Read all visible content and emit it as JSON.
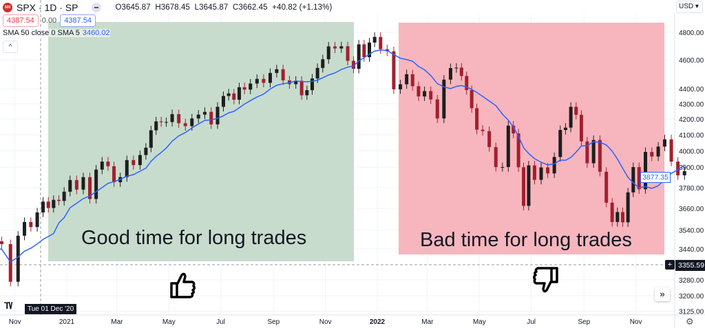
{
  "header": {
    "symbol": "SPX · 1D · SP",
    "logo_text": "500",
    "ohlc": "O3645.87  H3678.45  L3645.87  C3662.45  +40.82 (+1.13%)",
    "sell_price": "4387.54",
    "spread": "0.00",
    "buy_price": "4387.54",
    "indicator_label": "SMA 50 close 0 SMA 5",
    "indicator_value": "3460.02",
    "collapse_icon": "^",
    "currency": "USD ▾"
  },
  "annotations": {
    "good_label": "Good time for long trades",
    "bad_label": "Bad time for long trades",
    "good_color": "#c8dccd",
    "bad_color": "#f7b6be",
    "good_icon": "thumbs-up-icon",
    "bad_icon": "thumbs-down-icon"
  },
  "price_tags": {
    "last": "3877.35",
    "crosshair": "3355.59"
  },
  "crosshair_date": "Tue 01 Dec '20",
  "controls": {
    "scroll_right": "»",
    "settings": "⚙",
    "logo": "TV"
  },
  "chart_data": {
    "type": "candlestick",
    "scale": "log",
    "ylim": [
      3110,
      4900
    ],
    "y_ticks": [
      "4800.00",
      "4600.00",
      "4400.00",
      "4300.00",
      "4200.00",
      "4100.00",
      "4000.00",
      "3900.00",
      "3780.00",
      "3660.00",
      "3540.00",
      "3440.00",
      "3280.00",
      "3200.00",
      "3125.00"
    ],
    "x_ticks": [
      "Nov",
      "2021",
      "Mar",
      "May",
      "Jul",
      "Sep",
      "Nov",
      "2022",
      "Mar",
      "May",
      "Jul",
      "Sep",
      "Nov"
    ],
    "series": [
      {
        "name": "SPX",
        "weekly_closes_by_month": {
          "2020-10": [
            3480,
            3465,
            3270
          ],
          "2020-11": [
            3510,
            3585,
            3557,
            3638
          ],
          "2020-12": [
            3699,
            3663,
            3709,
            3703,
            3756
          ],
          "2021-01": [
            3824,
            3768,
            3841,
            3714
          ],
          "2021-02": [
            3886,
            3934,
            3906,
            3811
          ],
          "2021-03": [
            3841,
            3943,
            3913,
            3974
          ],
          "2021-04": [
            4019,
            4128,
            4185,
            4180,
            4181
          ],
          "2021-05": [
            4232,
            4173,
            4155,
            4204
          ],
          "2021-06": [
            4229,
            4247,
            4166,
            4280
          ],
          "2021-07": [
            4352,
            4369,
            4327,
            4411,
            4395
          ],
          "2021-08": [
            4436,
            4468,
            4441,
            4509
          ],
          "2021-09": [
            4535,
            4458,
            4432,
            4455
          ],
          "2021-10": [
            4357,
            4391,
            4471,
            4544,
            4605
          ],
          "2021-11": [
            4697,
            4682,
            4698,
            4594
          ],
          "2021-12": [
            4538,
            4712,
            4620,
            4725,
            4766
          ],
          "2022-01": [
            4677,
            4662,
            4397,
            4431
          ],
          "2022-02": [
            4500,
            4418,
            4349,
            4385
          ],
          "2022-03": [
            4329,
            4204,
            4463,
            4543
          ],
          "2022-04": [
            4546,
            4488,
            4392,
            4271,
            4132
          ],
          "2022-05": [
            4123,
            4023,
            3901,
            3901
          ],
          "2022-06": [
            4158,
            4108,
            3900,
            3675,
            3911
          ],
          "2022-07": [
            3825,
            3899,
            3863,
            3962
          ],
          "2022-08": [
            4130,
            4145,
            4280,
            4228,
            4058
          ],
          "2022-09": [
            3924,
            4067,
            3873,
            3693
          ],
          "2022-10": [
            3585,
            3640,
            3583,
            3752,
            3901
          ],
          "2022-11": [
            3770,
            3993,
            3965,
            4026
          ],
          "2022-12": [
            4071,
            3934,
            3852,
            3877
          ]
        }
      },
      {
        "name": "SMA 50",
        "color": "#2962ff"
      }
    ],
    "up_color": "#1e1e1e",
    "down_color": "#a3202e",
    "grid": true
  }
}
